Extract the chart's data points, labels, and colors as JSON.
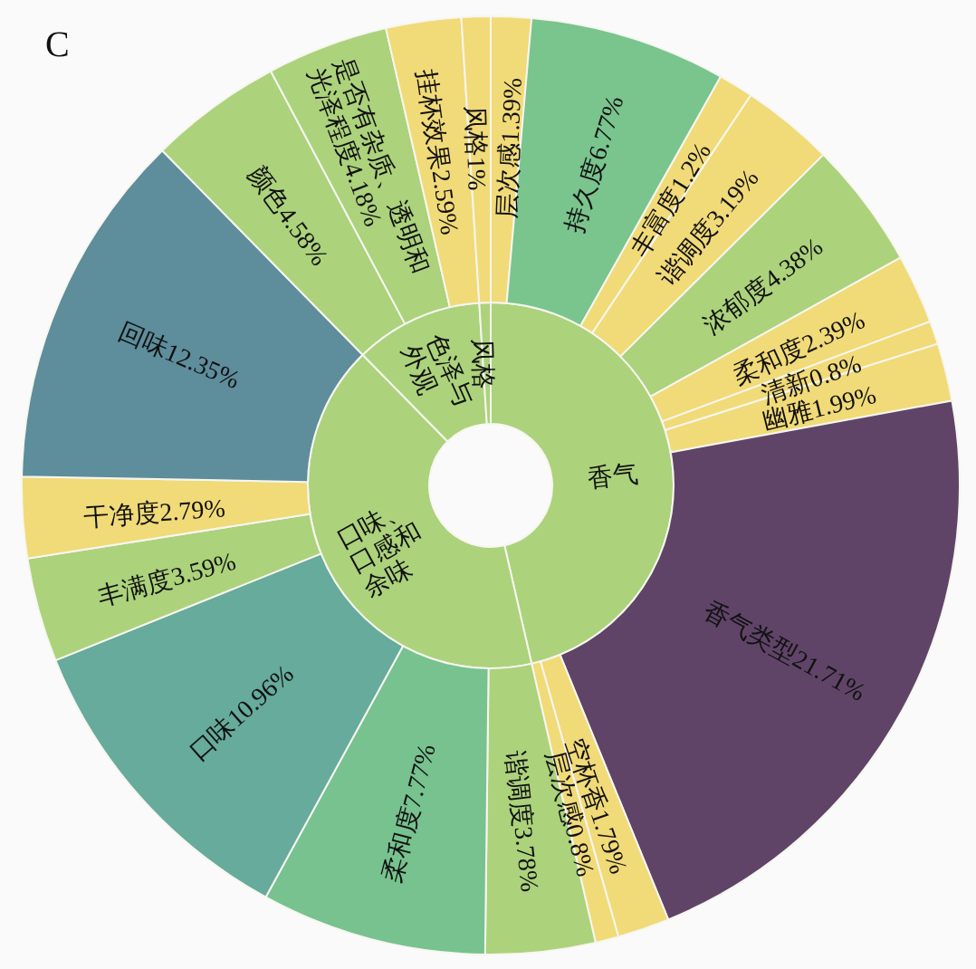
{
  "chart_data": [
    {
      "type": "donut",
      "categories": [
        "香气",
        "口味、口感和余味",
        "色泽与外观",
        "风格"
      ],
      "values": [
        46.41,
        41.24,
        11.35,
        1
      ],
      "colors": [
        "#acd27c",
        "#acd27c",
        "#acd27c",
        "#acd27c"
      ]
    },
    {
      "type": "donut",
      "title": "C",
      "categories": [
        "层次感",
        "持久度",
        "丰富度",
        "谐调度",
        "浓郁度",
        "柔和度",
        "清新",
        "幽雅",
        "香气类型",
        "空杯香",
        "层次感",
        "谐调度",
        "柔和度",
        "口味",
        "丰满度",
        "干净度",
        "回味",
        "颜色",
        "是否有杂质、透明和光泽程度",
        "挂杯效果",
        "风格"
      ],
      "values": [
        1.39,
        6.77,
        1.2,
        3.19,
        4.38,
        2.39,
        0.8,
        1.99,
        21.71,
        1.79,
        0.8,
        3.78,
        7.77,
        10.96,
        3.59,
        2.79,
        12.35,
        4.58,
        4.18,
        2.59,
        1
      ],
      "value_labels": [
        "1.39%",
        "6.77%",
        "1.2%",
        "3.19%",
        "4.38%",
        "2.39%",
        "0.8%",
        "1.99%",
        "21.71%",
        "1.79%",
        "0.8%",
        "3.78%",
        "7.77%",
        "10.96%",
        "3.59%",
        "2.79%",
        "12.35%",
        "4.58%",
        "4.18%",
        "2.59%",
        "1%"
      ],
      "colors": [
        "#f1da78",
        "#7ac48e",
        "#f1da78",
        "#f1da78",
        "#acd27c",
        "#f1da78",
        "#f1da78",
        "#f1da78",
        "#5f4468",
        "#f1da78",
        "#f1da78",
        "#acd27c",
        "#77c28f",
        "#66ab9b",
        "#acd27c",
        "#f1da78",
        "#5e8d9c",
        "#acd27c",
        "#acd27c",
        "#f1da78",
        "#f1da78"
      ]
    }
  ]
}
